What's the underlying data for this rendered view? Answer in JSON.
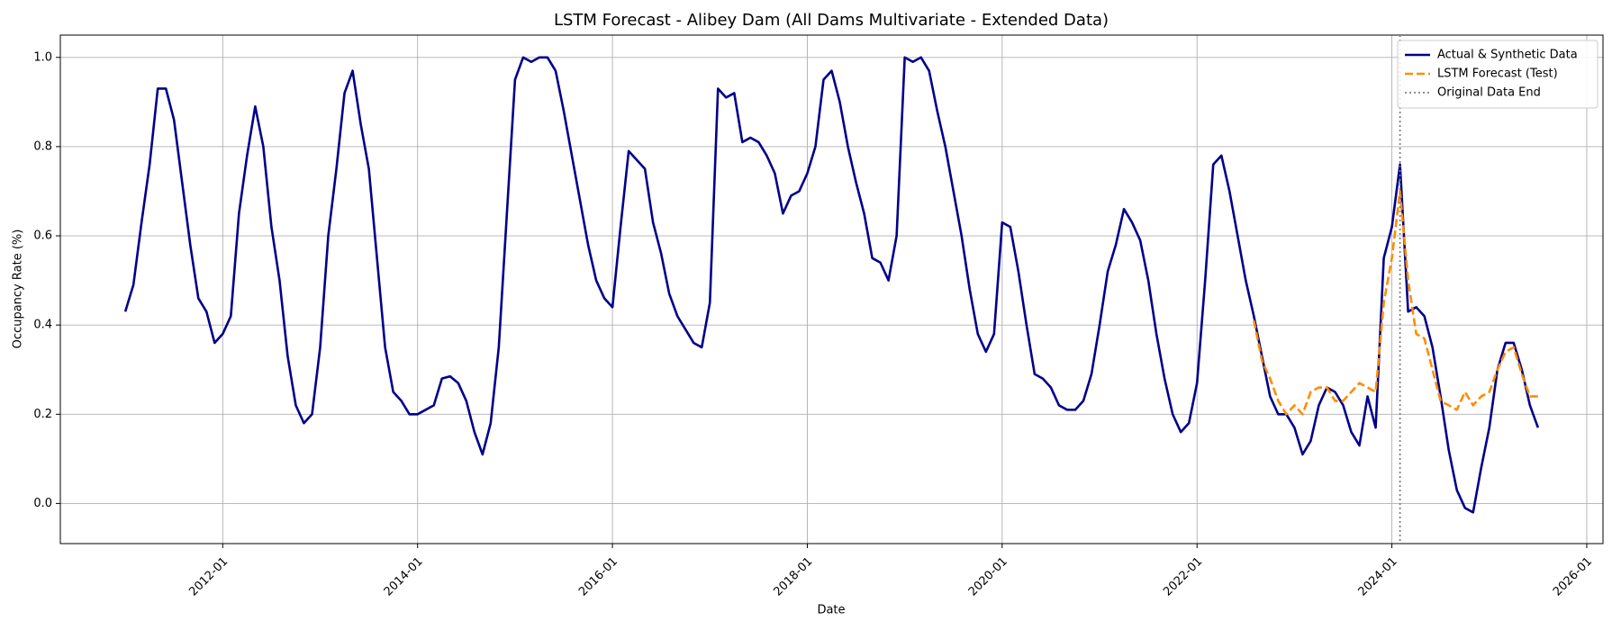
{
  "chart_data": {
    "type": "line",
    "title": "LSTM Forecast - Alibey Dam (All Dams Multivariate - Extended Data)",
    "x_label": "Date",
    "y_label": "Occupancy Rate (%)",
    "x": [
      "2011-01",
      "2011-02",
      "2011-03",
      "2011-04",
      "2011-05",
      "2011-06",
      "2011-07",
      "2011-08",
      "2011-09",
      "2011-10",
      "2011-11",
      "2011-12",
      "2012-01",
      "2012-02",
      "2012-03",
      "2012-04",
      "2012-05",
      "2012-06",
      "2012-07",
      "2012-08",
      "2012-09",
      "2012-10",
      "2012-11",
      "2012-12",
      "2013-01",
      "2013-02",
      "2013-03",
      "2013-04",
      "2013-05",
      "2013-06",
      "2013-07",
      "2013-08",
      "2013-09",
      "2013-10",
      "2013-11",
      "2013-12",
      "2014-01",
      "2014-02",
      "2014-03",
      "2014-04",
      "2014-05",
      "2014-06",
      "2014-07",
      "2014-08",
      "2014-09",
      "2014-10",
      "2014-11",
      "2014-12",
      "2015-01",
      "2015-02",
      "2015-03",
      "2015-04",
      "2015-05",
      "2015-06",
      "2015-07",
      "2015-08",
      "2015-09",
      "2015-10",
      "2015-11",
      "2015-12",
      "2016-01",
      "2016-02",
      "2016-03",
      "2016-04",
      "2016-05",
      "2016-06",
      "2016-07",
      "2016-08",
      "2016-09",
      "2016-10",
      "2016-11",
      "2016-12",
      "2017-01",
      "2017-02",
      "2017-03",
      "2017-04",
      "2017-05",
      "2017-06",
      "2017-07",
      "2017-08",
      "2017-09",
      "2017-10",
      "2017-11",
      "2017-12",
      "2018-01",
      "2018-02",
      "2018-03",
      "2018-04",
      "2018-05",
      "2018-06",
      "2018-07",
      "2018-08",
      "2018-09",
      "2018-10",
      "2018-11",
      "2018-12",
      "2019-01",
      "2019-02",
      "2019-03",
      "2019-04",
      "2019-05",
      "2019-06",
      "2019-07",
      "2019-08",
      "2019-09",
      "2019-10",
      "2019-11",
      "2019-12",
      "2020-01",
      "2020-02",
      "2020-03",
      "2020-04",
      "2020-05",
      "2020-06",
      "2020-07",
      "2020-08",
      "2020-09",
      "2020-10",
      "2020-11",
      "2020-12",
      "2021-01",
      "2021-02",
      "2021-03",
      "2021-04",
      "2021-05",
      "2021-06",
      "2021-07",
      "2021-08",
      "2021-09",
      "2021-10",
      "2021-11",
      "2021-12",
      "2022-01",
      "2022-02",
      "2022-03",
      "2022-04",
      "2022-05",
      "2022-06",
      "2022-07",
      "2022-08",
      "2022-09",
      "2022-10",
      "2022-11",
      "2022-12",
      "2023-01",
      "2023-02",
      "2023-03",
      "2023-04",
      "2023-05",
      "2023-06",
      "2023-07",
      "2023-08",
      "2023-09",
      "2023-10",
      "2023-11",
      "2023-12",
      "2024-01",
      "2024-02",
      "2024-03",
      "2024-04",
      "2024-05",
      "2024-06",
      "2024-07",
      "2024-08",
      "2024-09",
      "2024-10",
      "2024-11",
      "2024-12",
      "2025-01",
      "2025-02",
      "2025-03",
      "2025-04",
      "2025-05",
      "2025-06",
      "2025-07"
    ],
    "series": [
      {
        "name": "Actual & Synthetic Data",
        "color": "#00008b",
        "style": "solid",
        "values": [
          0.43,
          0.49,
          0.63,
          0.76,
          0.93,
          0.93,
          0.86,
          0.72,
          0.58,
          0.46,
          0.43,
          0.36,
          0.38,
          0.42,
          0.65,
          0.78,
          0.89,
          0.8,
          0.62,
          0.5,
          0.33,
          0.22,
          0.18,
          0.2,
          0.35,
          0.6,
          0.75,
          0.92,
          0.97,
          0.85,
          0.75,
          0.55,
          0.35,
          0.25,
          0.23,
          0.2,
          0.2,
          0.21,
          0.22,
          0.28,
          0.285,
          0.27,
          0.23,
          0.16,
          0.11,
          0.18,
          0.35,
          0.65,
          0.95,
          1.0,
          0.99,
          1.0,
          1.0,
          0.97,
          0.88,
          0.78,
          0.68,
          0.58,
          0.5,
          0.46,
          0.44,
          0.62,
          0.79,
          0.77,
          0.75,
          0.63,
          0.56,
          0.47,
          0.42,
          0.39,
          0.36,
          0.35,
          0.45,
          0.93,
          0.91,
          0.92,
          0.81,
          0.82,
          0.81,
          0.78,
          0.74,
          0.65,
          0.69,
          0.7,
          0.74,
          0.8,
          0.95,
          0.97,
          0.9,
          0.8,
          0.72,
          0.65,
          0.55,
          0.54,
          0.5,
          0.6,
          1.0,
          0.99,
          1.0,
          0.97,
          0.88,
          0.8,
          0.7,
          0.6,
          0.48,
          0.38,
          0.34,
          0.38,
          0.63,
          0.62,
          0.52,
          0.4,
          0.29,
          0.28,
          0.26,
          0.22,
          0.21,
          0.21,
          0.23,
          0.29,
          0.4,
          0.52,
          0.58,
          0.66,
          0.63,
          0.59,
          0.5,
          0.38,
          0.28,
          0.2,
          0.16,
          0.18,
          0.27,
          0.5,
          0.76,
          0.78,
          0.7,
          0.6,
          0.5,
          0.42,
          0.33,
          0.24,
          0.2,
          0.2,
          0.17,
          0.11,
          0.14,
          0.22,
          0.26,
          0.25,
          0.22,
          0.16,
          0.13,
          0.24,
          0.17,
          0.55,
          0.62,
          0.76,
          0.43,
          0.44,
          0.42,
          0.35,
          0.24,
          0.12,
          0.03,
          -0.01,
          -0.02,
          0.08,
          0.17,
          0.3,
          0.36,
          0.36,
          0.3,
          0.22,
          0.17
        ]
      },
      {
        "name": "LSTM Forecast (Test)",
        "color": "#ff8c00",
        "style": "dashed",
        "values": [
          null,
          null,
          null,
          null,
          null,
          null,
          null,
          null,
          null,
          null,
          null,
          null,
          null,
          null,
          null,
          null,
          null,
          null,
          null,
          null,
          null,
          null,
          null,
          null,
          null,
          null,
          null,
          null,
          null,
          null,
          null,
          null,
          null,
          null,
          null,
          null,
          null,
          null,
          null,
          null,
          null,
          null,
          null,
          null,
          null,
          null,
          null,
          null,
          null,
          null,
          null,
          null,
          null,
          null,
          null,
          null,
          null,
          null,
          null,
          null,
          null,
          null,
          null,
          null,
          null,
          null,
          null,
          null,
          null,
          null,
          null,
          null,
          null,
          null,
          null,
          null,
          null,
          null,
          null,
          null,
          null,
          null,
          null,
          null,
          null,
          null,
          null,
          null,
          null,
          null,
          null,
          null,
          null,
          null,
          null,
          null,
          null,
          null,
          null,
          null,
          null,
          null,
          null,
          null,
          null,
          null,
          null,
          null,
          null,
          null,
          null,
          null,
          null,
          null,
          null,
          null,
          null,
          null,
          null,
          null,
          null,
          null,
          null,
          null,
          null,
          null,
          null,
          null,
          null,
          null,
          null,
          null,
          null,
          null,
          null,
          null,
          null,
          null,
          null,
          0.41,
          0.32,
          0.28,
          0.23,
          0.2,
          0.22,
          0.2,
          0.25,
          0.26,
          0.26,
          0.23,
          0.23,
          0.25,
          0.27,
          0.26,
          0.25,
          0.45,
          0.55,
          0.7,
          0.5,
          0.38,
          0.37,
          0.3,
          0.23,
          0.22,
          0.21,
          0.25,
          0.22,
          0.24,
          0.25,
          0.3,
          0.34,
          0.35,
          0.29,
          0.24,
          0.24
        ]
      }
    ],
    "vlines": [
      {
        "name": "Original Data End",
        "x": "2024-02",
        "color": "#808080",
        "style": "dotted"
      }
    ],
    "xlim": [
      "2010-05",
      "2026-03"
    ],
    "xticks": [
      "2012-01",
      "2014-01",
      "2016-01",
      "2018-01",
      "2020-01",
      "2022-01",
      "2024-01",
      "2026-01"
    ],
    "ylim": [
      -0.09,
      1.05
    ],
    "yticks": [
      {
        "value": 0,
        "label": "0.0"
      },
      {
        "value": 0.2,
        "label": "0.2"
      },
      {
        "value": 0.4,
        "label": "0.4"
      },
      {
        "value": 0.6,
        "label": "0.6"
      },
      {
        "value": 0.8,
        "label": "0.8"
      },
      {
        "value": 1,
        "label": "1.0"
      }
    ],
    "grid": true,
    "legend": "upper right"
  }
}
